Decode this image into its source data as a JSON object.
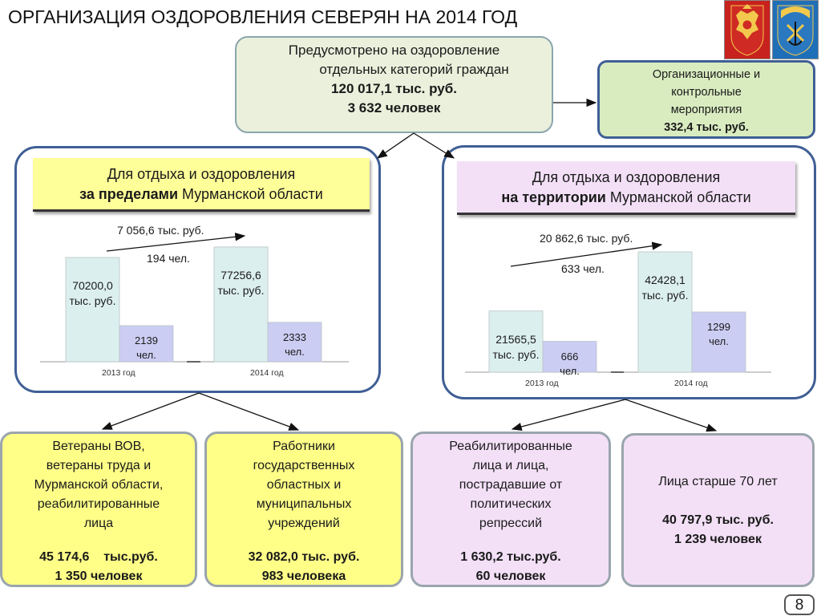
{
  "header": {
    "title": "ОРГАНИЗАЦИЯ ОЗДОРОВЛЕНИЯ СЕВЕРЯН НА 2014 ГОД"
  },
  "emblems": {
    "left": "coat-of-arms-russia",
    "right": "coat-of-arms-murmansk"
  },
  "top_box": {
    "line1": "Предусмотрено на оздоровление",
    "line2": "отдельных категорий граждан",
    "amount": "120 017,1 тыс. руб.",
    "people": "3 632 человек"
  },
  "org_box": {
    "line1": "Организационные и",
    "line2": "контрольные",
    "line3": "мероприятия",
    "amount": "332,4 тыс. руб."
  },
  "left_panel": {
    "header_line1": "Для отдыха и оздоровления",
    "header_bold": "за пределами",
    "header_rest": " Мурманской области",
    "delta_money": "7 056,6 тыс. руб.",
    "delta_people": "194 чел.",
    "chart_data": {
      "type": "bar",
      "categories": [
        "2013 год",
        "2014 год"
      ],
      "series": [
        {
          "values": [
            70200.0,
            77256.6
          ],
          "labels": [
            "70200,0",
            "77256,6"
          ],
          "unit": "тыс. руб.",
          "color": "#dcefef"
        },
        {
          "values": [
            2139,
            2333
          ],
          "labels": [
            "2139",
            "2333"
          ],
          "unit": "чел.",
          "color": "#cccdf3"
        }
      ]
    }
  },
  "right_panel": {
    "header_line1": "Для отдыха и оздоровления",
    "header_bold": "на территории",
    "header_rest": " Мурманской области",
    "delta_money": "20 862,6 тыс. руб.",
    "delta_people": "633 чел.",
    "chart_data": {
      "type": "bar",
      "categories": [
        "2013 год",
        "2014 год"
      ],
      "series": [
        {
          "values": [
            21565.5,
            42428.1
          ],
          "labels": [
            "21565,5",
            "42428,1"
          ],
          "unit": "тыс. руб.",
          "color": "#dcefef"
        },
        {
          "values": [
            666,
            1299
          ],
          "labels": [
            "666",
            "1299"
          ],
          "unit": "чел.",
          "color": "#cccdf3"
        }
      ]
    }
  },
  "bottom_boxes": [
    {
      "lines": [
        "Ветераны ВОВ,",
        "ветераны труда и",
        "Мурманской области,",
        "реабилитированные",
        "лица"
      ],
      "amount": "45 174,6    тыс.руб.",
      "people": "1 350 человек"
    },
    {
      "lines": [
        "Работники",
        "государственных",
        "областных и",
        "муниципальных",
        "учреждений"
      ],
      "amount": "32 082,0 тыс. руб.",
      "people": "983 человека"
    },
    {
      "lines": [
        "Реабилитированные",
        "лица и лица,",
        "пострадавшие от",
        "политических",
        "репрессий"
      ],
      "amount": "1 630,2 тыс.руб.",
      "people": "60 человек"
    },
    {
      "lines": [
        "Лица старше 70 лет"
      ],
      "amount": "40 797,9 тыс. руб.",
      "people": "1 239 человек"
    }
  ],
  "footer": {
    "page_number": "8"
  }
}
